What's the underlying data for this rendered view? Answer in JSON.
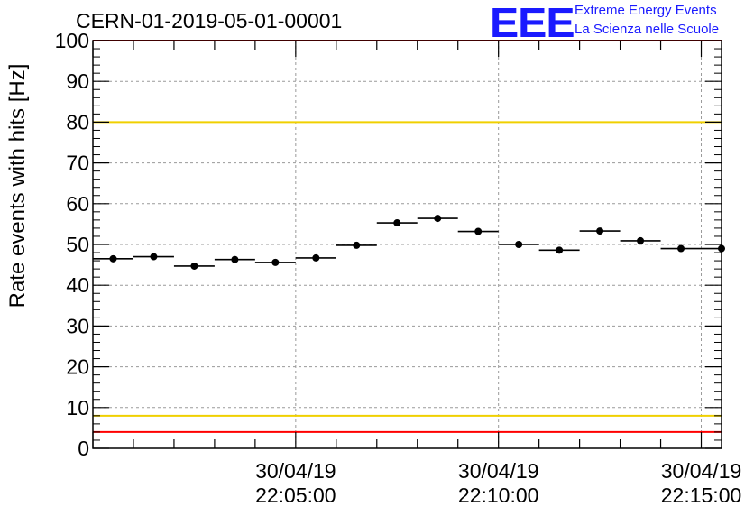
{
  "chart_data": {
    "type": "scatter",
    "title": "CERN-01-2019-05-01-00001",
    "ylabel": "Rate events with hits [Hz]",
    "xlabel": "",
    "ylim": [
      0,
      100
    ],
    "yticks": [
      0,
      10,
      20,
      30,
      40,
      50,
      60,
      70,
      80,
      90,
      100
    ],
    "grid": true,
    "xtick_labels": [
      {
        "date": "30/04/19",
        "time": "22:05:00"
      },
      {
        "date": "30/04/19",
        "time": "22:10:00"
      },
      {
        "date": "30/04/19",
        "time": "22:15:00"
      }
    ],
    "x_time_range": [
      "22:00:00",
      "22:15:30"
    ],
    "bin_width_min": 1,
    "series": [
      {
        "x": [
          "22:00:30",
          "22:01:30",
          "22:02:30",
          "22:03:30",
          "22:04:30",
          "22:05:30",
          "22:06:30",
          "22:07:30",
          "22:08:30",
          "22:09:30",
          "22:10:30",
          "22:11:30",
          "22:12:30",
          "22:13:30",
          "22:14:30",
          "22:15:30"
        ],
        "values": [
          46.5,
          47.0,
          44.7,
          46.3,
          45.6,
          46.7,
          49.8,
          55.3,
          56.4,
          53.2,
          50.0,
          48.6,
          53.3,
          50.9,
          49.0,
          49.0
        ]
      }
    ],
    "reference_lines": [
      {
        "y": 100,
        "color": "#ff0000"
      },
      {
        "y": 80,
        "color": "#f0d000"
      },
      {
        "y": 8,
        "color": "#f0d000"
      },
      {
        "y": 4,
        "color": "#ff0000"
      }
    ]
  },
  "header": {
    "title": "CERN-01-2019-05-01-00001"
  },
  "logo": {
    "mark": "EEE",
    "line1": "Extreme Energy Events",
    "line2": "La Scienza nelle Scuole",
    "color": "#1a1aff"
  }
}
